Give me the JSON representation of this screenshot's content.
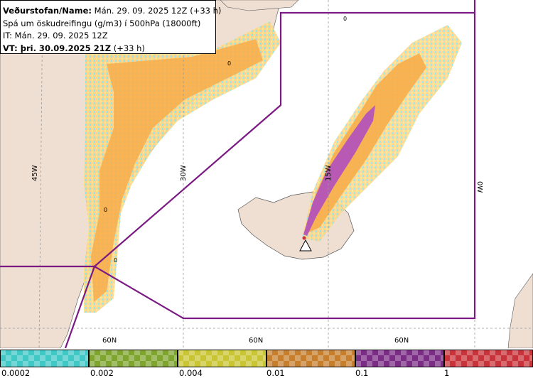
{
  "header": {
    "line1_label": "Veðurstofan/Name:",
    "line1_value": "Mán. 29. 09. 2025 12Z (+33 h)",
    "line2": "Spá um öskudreifingu (g/m3) í 500hPa (18000ft)",
    "line3": "IT: Mán. 29. 09. 2025 12Z",
    "line4_label": "VT: þri. 30.09.2025 21Z",
    "line4_value": "(+33 h)"
  },
  "map": {
    "grid_labels": {
      "lon_45w": "45W",
      "lon_30w": "30W",
      "lon_15w": "15W",
      "lon_0w": "0W",
      "lat_60n_a": "60N",
      "lat_60n_b": "60N",
      "lat_60n_c": "60N"
    },
    "contour_labels": [
      "0",
      "0",
      "0",
      "0"
    ],
    "colors": {
      "land": "#efdfd3",
      "sea": "#ffffff",
      "boundary": "#7b1a83",
      "ash_light": "#fdd38a",
      "ash_mid": "#f8ad4a",
      "ash_high": "#b04fbf",
      "ash_speckle_cyan": "#8ee5e3",
      "ash_speckle_yellow": "#f5ec80"
    }
  },
  "legend": {
    "labels": [
      "0.0002",
      "0.002",
      "0.004",
      "0.01",
      "0.1",
      "1"
    ],
    "colors": [
      "#3fc8c5",
      "#7fa52e",
      "#c9c533",
      "#c67f2d",
      "#7b2d85",
      "#c8323a"
    ]
  }
}
